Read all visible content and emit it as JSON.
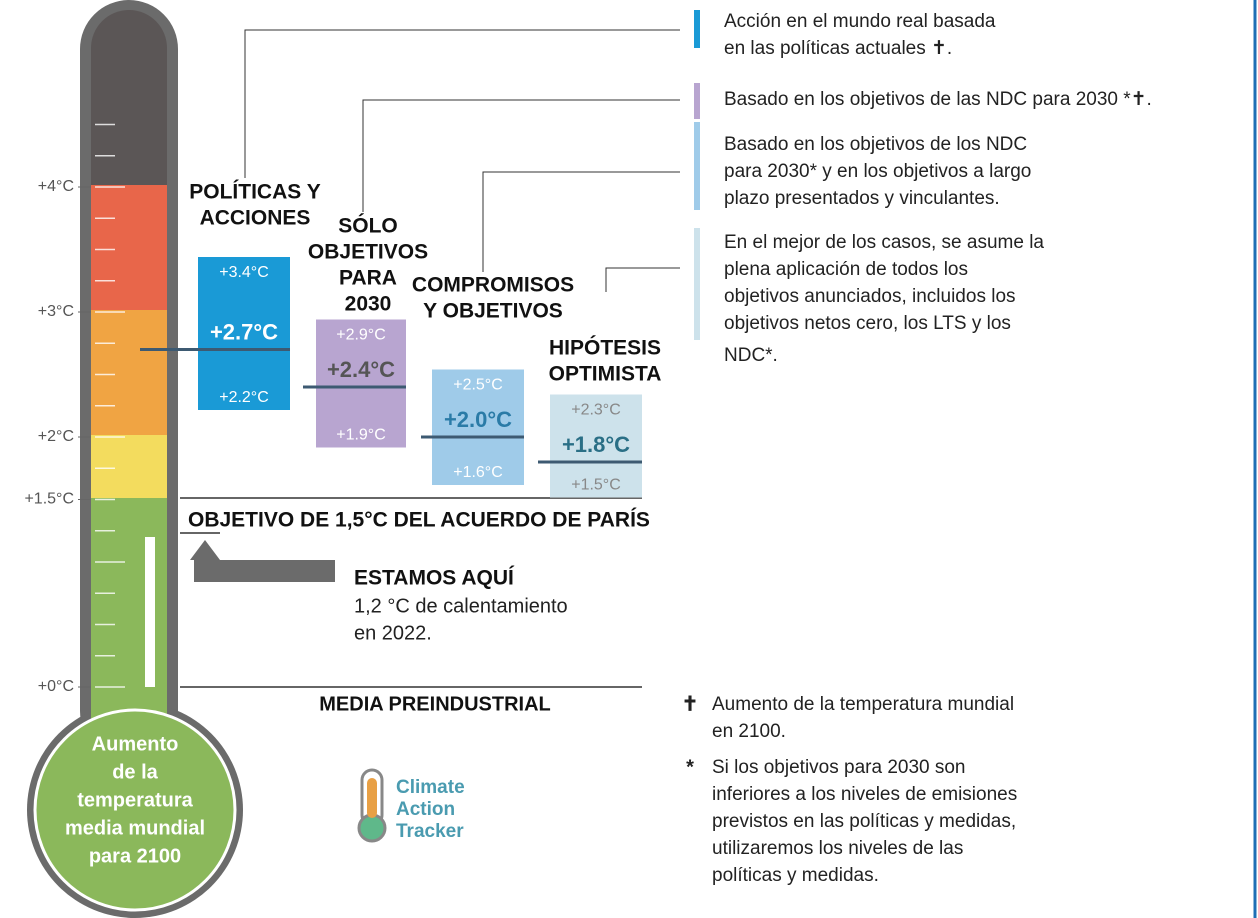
{
  "thermometer": {
    "label": [
      "Aumento",
      "de la",
      "temperatura",
      "media mundial",
      "para 2100"
    ],
    "ticks": [
      {
        "value": 0,
        "label": "+0°C"
      },
      {
        "value": 1.5,
        "label": "+1.5°C"
      },
      {
        "value": 2,
        "label": "+2°C"
      },
      {
        "value": 3,
        "label": "+3°C"
      },
      {
        "value": 4,
        "label": "+4°C"
      }
    ]
  },
  "scenarios": [
    {
      "title": [
        "POLÍTICAS Y",
        "ACCIONES"
      ],
      "color": "#1a9ad6",
      "high": {
        "value": 3.4,
        "label": "+3.4°C"
      },
      "mid": {
        "value": 2.7,
        "label": "+2.7°C"
      },
      "low": {
        "value": 2.2,
        "label": "+2.2°C"
      },
      "legend": [
        "Acción en el mundo real basada",
        "en las políticas actuales ✝."
      ]
    },
    {
      "title": [
        "SÓLO",
        "OBJETIVOS",
        "PARA",
        "2030"
      ],
      "color": "#b8a5d0",
      "high": {
        "value": 2.9,
        "label": "+2.9°C"
      },
      "mid": {
        "value": 2.4,
        "label": "+2.4°C"
      },
      "low": {
        "value": 1.9,
        "label": "+1.9°C"
      },
      "legend": [
        "Basado en los objetivos  de las NDC para 2030 *✝."
      ]
    },
    {
      "title": [
        "COMPROMISOS",
        "Y OBJETIVOS"
      ],
      "color": "#9fcbe9",
      "high": {
        "value": 2.5,
        "label": "+2.5°C"
      },
      "mid": {
        "value": 2.0,
        "label": "+2.0°C"
      },
      "low": {
        "value": 1.6,
        "label": "+1.6°C"
      },
      "legend": [
        "Basado en los objetivos de los NDC",
        "para 2030* y en los objetivos a largo",
        "plazo presentados y vinculantes."
      ]
    },
    {
      "title": [
        "HIPÓTESIS",
        "OPTIMISTA"
      ],
      "color": "#cde2eb",
      "high": {
        "value": 2.3,
        "label": "+2.3°C"
      },
      "mid": {
        "value": 1.8,
        "label": "+1.8°C"
      },
      "low": {
        "value": 1.5,
        "label": "+1.5°C"
      },
      "legend": [
        "En el mejor de los casos, se asume la",
        "plena aplicación de todos los",
        "objetivos anunciados, incluidos los",
        "objetivos netos cero, los LTS y los",
        "NDC*."
      ]
    }
  ],
  "paris": "OBJETIVO DE 1,5°C DEL ACUERDO DE PARÍS",
  "here": {
    "title": "ESTAMOS AQUÍ",
    "text": [
      "1,2 °C de calentamiento",
      "en 2022."
    ]
  },
  "baseline": "MEDIA PREINDUSTRIAL",
  "notes": [
    {
      "symbol": "✝",
      "text": [
        "Aumento de la temperatura mundial",
        "en 2100."
      ]
    },
    {
      "symbol": "*",
      "text": [
        "Si los objetivos para 2030 son",
        "inferiores a los niveles de emisiones",
        "previstos en las políticas y medidas,",
        "utilizaremos los niveles de las",
        "políticas y medidas."
      ]
    }
  ],
  "logo": [
    "Climate",
    "Action",
    "Tracker"
  ]
}
